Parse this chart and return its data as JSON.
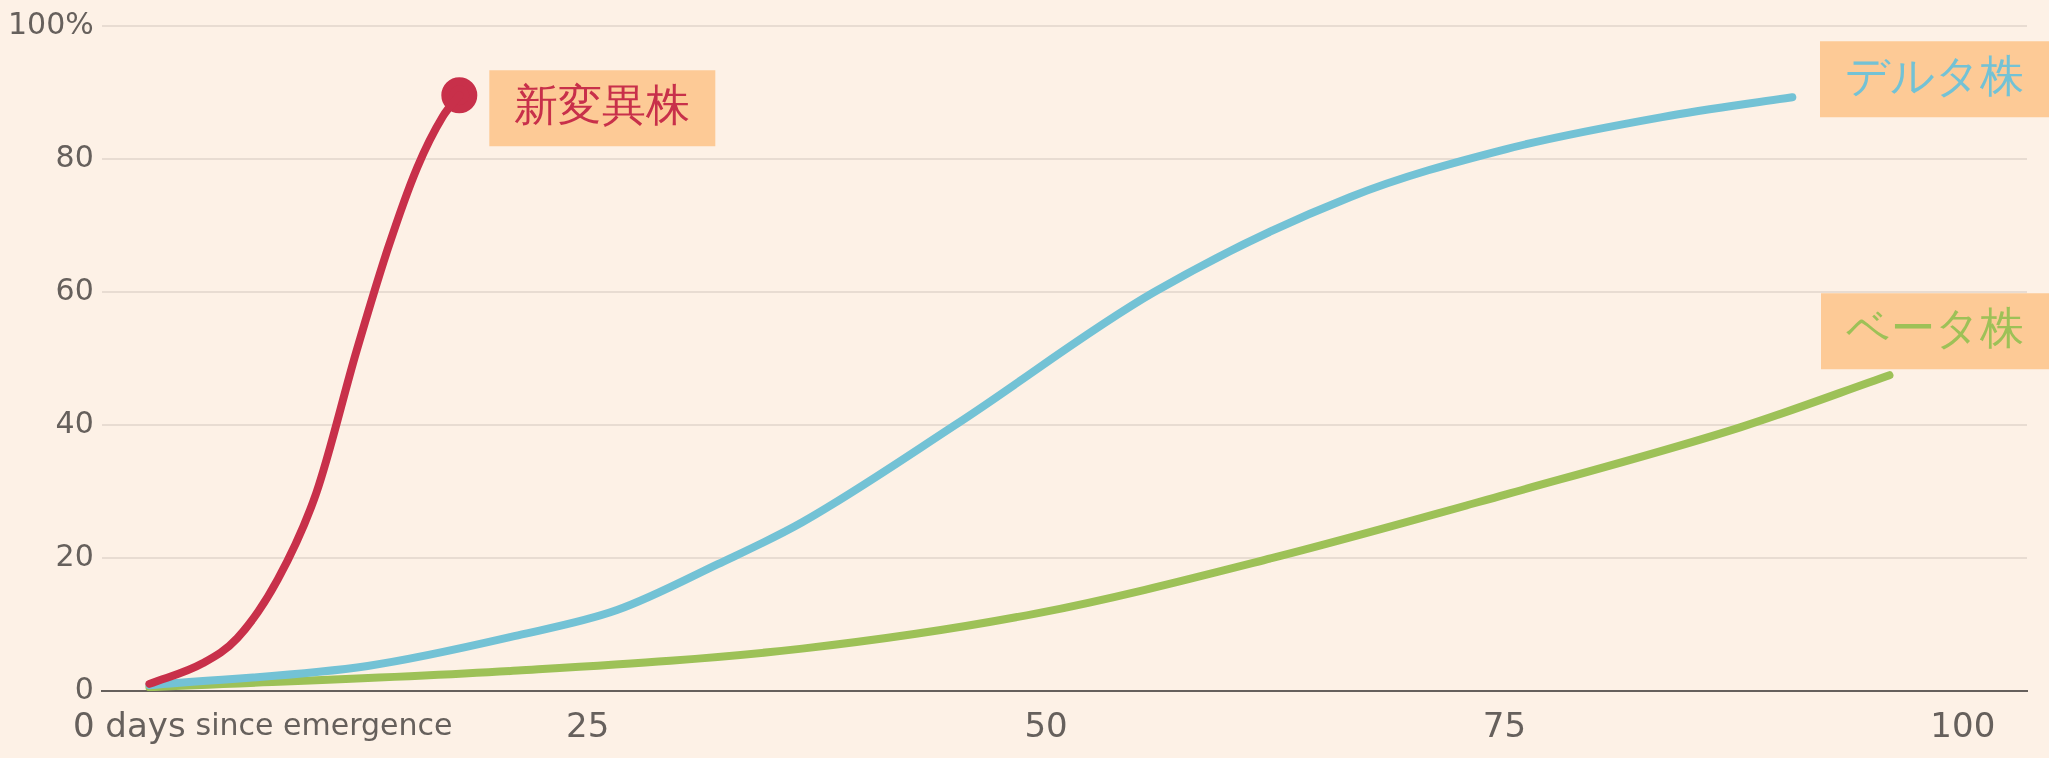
{
  "chart_data": {
    "type": "line",
    "xlabel": "since emergence",
    "xlim": [
      -1.5,
      103.5
    ],
    "xticks": [
      {
        "value": 0,
        "label": "0 days"
      },
      25,
      50,
      75,
      100
    ],
    "ylim": [
      0,
      100
    ],
    "yticks": [
      0,
      20,
      40,
      60,
      80,
      {
        "value": 100,
        "label": "100%"
      }
    ],
    "grid": "y",
    "legend": false,
    "line_style": "solid",
    "marker": "none",
    "series": [
      {
        "name": "新変異株",
        "color": "#c8304a",
        "x": [
          1.1,
          4.0,
          5.9,
          8.1,
          10.2,
          12.4,
          14.1,
          15.7,
          17.1,
          18.0
        ],
        "values": [
          1.1,
          4.2,
          8.0,
          16.8,
          29.8,
          51.2,
          66.5,
          78.7,
          86.4,
          89.6
        ]
      },
      {
        "name": "デルタ株",
        "color": "#73c2d5",
        "x": [
          1.1,
          13,
          21.2,
          26.6,
          32.1,
          36.7,
          45.2,
          55.9,
          66.6,
          75.1,
          83.6,
          90.7
        ],
        "values": [
          0.9,
          3.8,
          8.4,
          12.2,
          19.1,
          25.4,
          40.3,
          60.0,
          74.3,
          81.5,
          86.3,
          89.3
        ]
      },
      {
        "name": "ベータ株",
        "color": "#9dc157",
        "x": [
          1.1,
          21.2,
          36.7,
          49.5,
          62.3,
          75.1,
          87.9,
          96
        ],
        "values": [
          0.6,
          3.1,
          6.4,
          11.7,
          20.0,
          29.6,
          39.7,
          47.5
        ]
      },
      {
        "type": "scatter",
        "color": "#c8304a",
        "marker": "circle",
        "x": [
          18.0
        ],
        "values": [
          89.6
        ]
      }
    ]
  }
}
